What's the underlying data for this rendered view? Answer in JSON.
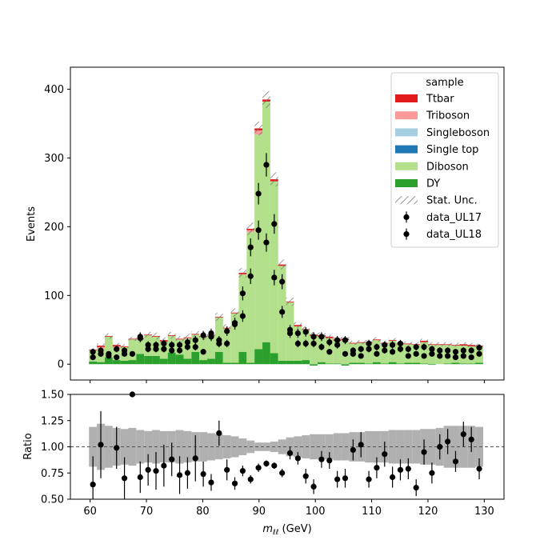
{
  "chart_data": [
    {
      "type": "bar",
      "stacked": true,
      "x": [
        60.5,
        61.9,
        63.3,
        64.7,
        66.1,
        67.5,
        68.9,
        70.3,
        71.7,
        73.1,
        74.5,
        75.9,
        77.3,
        78.7,
        80.1,
        81.5,
        82.9,
        84.3,
        85.7,
        87.1,
        88.5,
        89.9,
        91.3,
        92.7,
        94.1,
        95.5,
        96.9,
        98.3,
        99.7,
        101.1,
        102.5,
        103.9,
        105.3,
        106.7,
        108.1,
        109.5,
        110.9,
        112.3,
        113.7,
        115.1,
        116.5,
        117.9,
        119.3,
        120.7,
        122.1,
        123.5,
        124.9,
        126.3,
        127.7,
        129.1
      ],
      "series": [
        {
          "name": "DY",
          "color": "#2ca02c",
          "values": [
            4,
            3,
            10,
            6,
            5,
            6,
            15,
            12,
            12,
            8,
            17,
            14,
            8,
            18,
            6,
            8,
            18,
            2,
            2,
            18,
            2,
            22,
            32,
            16,
            5,
            5,
            5,
            6,
            -2,
            3,
            1,
            1,
            -2,
            2,
            2,
            1,
            3,
            1,
            3,
            1,
            2,
            2,
            1,
            -1,
            0,
            1,
            2,
            1,
            1,
            2
          ]
        },
        {
          "name": "Diboson",
          "color": "#b2df8a",
          "values": [
            16,
            20,
            30,
            18,
            20,
            30,
            22,
            30,
            28,
            25,
            24,
            22,
            30,
            25,
            34,
            34,
            50,
            50,
            72,
            112,
            190,
            312,
            350,
            250,
            138,
            85,
            50,
            44,
            41,
            37,
            37,
            33,
            35,
            28,
            29,
            30,
            32,
            26,
            31,
            28,
            27,
            26,
            31,
            28,
            28,
            27,
            25,
            26,
            25,
            24
          ]
        },
        {
          "name": "Single top",
          "color": "#1f78b4",
          "values": [
            0,
            0,
            0,
            0,
            0,
            0,
            0,
            0,
            0,
            0,
            0,
            0,
            0,
            0,
            0,
            0,
            0,
            0,
            0,
            0,
            0,
            0,
            0,
            0,
            0,
            0,
            0,
            0,
            0,
            0,
            0,
            0,
            0,
            0,
            0,
            0,
            0,
            0,
            0,
            0,
            0,
            0,
            0,
            0,
            0,
            0,
            0,
            0,
            0,
            0
          ]
        },
        {
          "name": "Singleboson",
          "color": "#a6cee3",
          "values": [
            0,
            0,
            0,
            0,
            0,
            0,
            0,
            0,
            0,
            0,
            0,
            0,
            0,
            0,
            0,
            0,
            0,
            0,
            0,
            0,
            0,
            0,
            0,
            0,
            0,
            0,
            0,
            0,
            0,
            0,
            0,
            0,
            0,
            0,
            0,
            0,
            0,
            3,
            0,
            0,
            0,
            0,
            0,
            0,
            0,
            0,
            0,
            0,
            0,
            0
          ]
        },
        {
          "name": "Triboson",
          "color": "#fb9a99",
          "values": [
            0,
            2,
            0,
            2,
            0,
            0,
            0,
            0,
            0,
            0,
            0,
            0,
            0,
            0,
            0,
            0,
            0,
            0,
            0,
            1,
            3,
            6,
            0,
            0,
            0,
            0,
            0,
            0,
            0,
            0,
            0,
            0,
            0,
            0,
            0,
            0,
            0,
            0,
            0,
            0,
            0,
            0,
            0,
            0,
            0,
            0,
            0,
            0,
            0,
            0
          ]
        },
        {
          "name": "Ttbar",
          "color": "#e31a1c",
          "values": [
            1,
            2,
            1,
            2,
            1,
            1,
            1,
            1,
            1,
            2,
            1,
            1,
            1,
            1,
            1,
            1,
            1,
            1,
            1,
            2,
            2,
            3,
            3,
            3,
            2,
            1,
            2,
            1,
            2,
            2,
            2,
            2,
            2,
            1,
            1,
            1,
            1,
            1,
            1,
            1,
            1,
            1,
            2,
            1,
            1,
            1,
            1,
            2,
            2,
            1
          ]
        }
      ],
      "stat_unc": [
        2,
        3,
        4,
        3,
        3,
        3,
        5,
        4,
        5,
        4,
        5,
        4,
        5,
        4,
        6,
        5,
        6,
        5,
        6,
        7,
        9,
        10,
        12,
        10,
        7,
        6,
        4,
        4,
        4,
        4,
        3,
        3,
        3,
        3,
        3,
        3,
        3,
        3,
        3,
        3,
        3,
        3,
        3,
        3,
        3,
        3,
        3,
        3,
        3,
        3
      ],
      "data": [
        {
          "name": "data_UL17",
          "points": [
            [
              60.5,
              10
            ],
            [
              61.9,
              15
            ],
            [
              63.3,
              12
            ],
            [
              64.7,
              10
            ],
            [
              66.1,
              15
            ],
            [
              68.9,
              38
            ],
            [
              70.3,
              22
            ],
            [
              71.7,
              22
            ],
            [
              73.1,
              22
            ],
            [
              74.5,
              20
            ],
            [
              75.9,
              20
            ],
            [
              77.3,
              25
            ],
            [
              78.7,
              25
            ],
            [
              80.1,
              18
            ],
            [
              81.5,
              40
            ],
            [
              82.9,
              30
            ],
            [
              84.3,
              30
            ],
            [
              85.7,
              58
            ],
            [
              87.1,
              70
            ],
            [
              88.5,
              128
            ],
            [
              89.9,
              195
            ],
            [
              91.3,
              177
            ],
            [
              92.7,
              126
            ],
            [
              94.1,
              76
            ],
            [
              95.5,
              45
            ],
            [
              96.9,
              30
            ],
            [
              98.3,
              30
            ],
            [
              99.7,
              30
            ],
            [
              101.1,
              25
            ],
            [
              102.5,
              18
            ],
            [
              103.9,
              28
            ],
            [
              105.3,
              15
            ],
            [
              106.7,
              15
            ],
            [
              108.1,
              12
            ],
            [
              109.5,
              22
            ],
            [
              110.9,
              15
            ],
            [
              112.3,
              20
            ],
            [
              113.7,
              18
            ],
            [
              115.1,
              22
            ],
            [
              116.5,
              12
            ],
            [
              117.9,
              15
            ],
            [
              119.3,
              12
            ],
            [
              120.7,
              15
            ],
            [
              122.1,
              12
            ],
            [
              123.5,
              12
            ],
            [
              124.9,
              10
            ],
            [
              126.3,
              12
            ],
            [
              127.7,
              10
            ],
            [
              129.1,
              15
            ]
          ]
        },
        {
          "name": "data_UL18",
          "points": [
            [
              60.5,
              18
            ],
            [
              61.9,
              20
            ],
            [
              63.3,
              15
            ],
            [
              64.7,
              22
            ],
            [
              66.1,
              20
            ],
            [
              67.5,
              15
            ],
            [
              68.9,
              40
            ],
            [
              70.3,
              28
            ],
            [
              71.7,
              28
            ],
            [
              73.1,
              30
            ],
            [
              74.5,
              28
            ],
            [
              75.9,
              28
            ],
            [
              77.3,
              32
            ],
            [
              78.7,
              35
            ],
            [
              80.1,
              42
            ],
            [
              81.5,
              45
            ],
            [
              82.9,
              35
            ],
            [
              84.3,
              48
            ],
            [
              85.7,
              60
            ],
            [
              87.1,
              103
            ],
            [
              88.5,
              170
            ],
            [
              89.9,
              248
            ],
            [
              91.3,
              290
            ],
            [
              92.7,
              204
            ],
            [
              94.1,
              120
            ],
            [
              95.5,
              50
            ],
            [
              96.9,
              45
            ],
            [
              98.3,
              47
            ],
            [
              99.7,
              40
            ],
            [
              101.1,
              40
            ],
            [
              102.5,
              32
            ],
            [
              103.9,
              35
            ],
            [
              105.3,
              35
            ],
            [
              106.7,
              20
            ],
            [
              108.1,
              22
            ],
            [
              109.5,
              30
            ],
            [
              110.9,
              25
            ],
            [
              112.3,
              28
            ],
            [
              113.7,
              28
            ],
            [
              115.1,
              30
            ],
            [
              116.5,
              22
            ],
            [
              117.9,
              25
            ],
            [
              119.3,
              25
            ],
            [
              120.7,
              22
            ],
            [
              122.1,
              20
            ],
            [
              123.5,
              20
            ],
            [
              124.9,
              18
            ],
            [
              126.3,
              20
            ],
            [
              127.7,
              20
            ],
            [
              129.1,
              24
            ]
          ]
        }
      ],
      "ylabel": "Events",
      "legend_title": "sample",
      "legend": [
        "Ttbar",
        "Triboson",
        "Singleboson",
        "Single top",
        "Diboson",
        "DY",
        "Stat. Unc.",
        "data_UL17",
        "data_UL18"
      ],
      "legend_placement": "top-right",
      "xlim": [
        56.5,
        133.5
      ],
      "ylim": [
        -23,
        432
      ],
      "yticks": [
        0,
        100,
        200,
        300,
        400
      ]
    },
    {
      "type": "scatter",
      "ylabel": "Ratio",
      "xlabel_prefix": "m",
      "xlabel_sub": "ℓℓ",
      "xlabel_suffix": " (GeV)",
      "xlim": [
        56.5,
        133.5
      ],
      "ylim": [
        0.5,
        1.5
      ],
      "xticks": [
        60,
        70,
        80,
        90,
        100,
        110,
        120,
        130
      ],
      "yticks": [
        "0.50",
        "0.75",
        "1.00",
        "1.25",
        "1.50"
      ],
      "reference_line": 1.0,
      "unc_band": [
        0.19,
        0.22,
        0.2,
        0.18,
        0.17,
        0.18,
        0.16,
        0.15,
        0.16,
        0.15,
        0.15,
        0.16,
        0.15,
        0.14,
        0.14,
        0.13,
        0.12,
        0.11,
        0.1,
        0.08,
        0.06,
        0.04,
        0.04,
        0.05,
        0.07,
        0.09,
        0.1,
        0.11,
        0.12,
        0.12,
        0.12,
        0.13,
        0.13,
        0.14,
        0.14,
        0.15,
        0.15,
        0.15,
        0.16,
        0.16,
        0.16,
        0.16,
        0.17,
        0.17,
        0.18,
        0.2,
        0.2,
        0.2,
        0.2,
        0.19
      ],
      "points": [
        [
          60.5,
          0.64,
          0.27
        ],
        [
          61.9,
          1.02,
          0.32
        ],
        [
          64.7,
          0.99,
          0.2
        ],
        [
          66.1,
          0.7,
          0.2
        ],
        [
          67.5,
          1.5,
          0.0
        ],
        [
          68.9,
          0.71,
          0.15
        ],
        [
          70.3,
          0.78,
          0.15
        ],
        [
          71.7,
          0.77,
          0.18
        ],
        [
          73.1,
          0.82,
          0.2
        ],
        [
          74.5,
          0.88,
          0.16
        ],
        [
          75.9,
          0.73,
          0.18
        ],
        [
          77.3,
          0.75,
          0.15
        ],
        [
          78.7,
          0.89,
          0.22
        ],
        [
          80.1,
          0.74,
          0.12
        ],
        [
          81.5,
          0.66,
          0.08
        ],
        [
          82.9,
          1.13,
          0.12
        ],
        [
          84.3,
          0.78,
          0.1
        ],
        [
          85.7,
          0.65,
          0.06
        ],
        [
          87.1,
          0.77,
          0.05
        ],
        [
          88.5,
          0.69,
          0.04
        ],
        [
          89.9,
          0.8,
          0.04
        ],
        [
          91.3,
          0.84,
          0.03
        ],
        [
          92.7,
          0.82,
          0.03
        ],
        [
          94.1,
          0.75,
          0.04
        ],
        [
          95.5,
          0.94,
          0.06
        ],
        [
          96.9,
          0.89,
          0.06
        ],
        [
          98.3,
          0.72,
          0.07
        ],
        [
          99.7,
          0.62,
          0.07
        ],
        [
          101.1,
          0.88,
          0.08
        ],
        [
          102.5,
          0.87,
          0.08
        ],
        [
          103.9,
          0.69,
          0.08
        ],
        [
          105.3,
          0.7,
          0.09
        ],
        [
          106.7,
          0.97,
          0.1
        ],
        [
          108.1,
          1.02,
          0.12
        ],
        [
          109.5,
          0.69,
          0.08
        ],
        [
          110.9,
          0.8,
          0.1
        ],
        [
          112.3,
          0.93,
          0.12
        ],
        [
          113.7,
          0.71,
          0.1
        ],
        [
          115.1,
          0.78,
          0.1
        ],
        [
          116.5,
          0.79,
          0.1
        ],
        [
          117.9,
          0.61,
          0.08
        ],
        [
          119.3,
          0.95,
          0.12
        ],
        [
          120.7,
          0.75,
          0.1
        ],
        [
          122.1,
          1.0,
          0.12
        ],
        [
          123.5,
          1.05,
          0.12
        ],
        [
          124.9,
          0.86,
          0.1
        ],
        [
          126.3,
          1.12,
          0.12
        ],
        [
          127.7,
          1.07,
          0.12
        ],
        [
          129.1,
          0.79,
          0.1
        ]
      ]
    }
  ]
}
